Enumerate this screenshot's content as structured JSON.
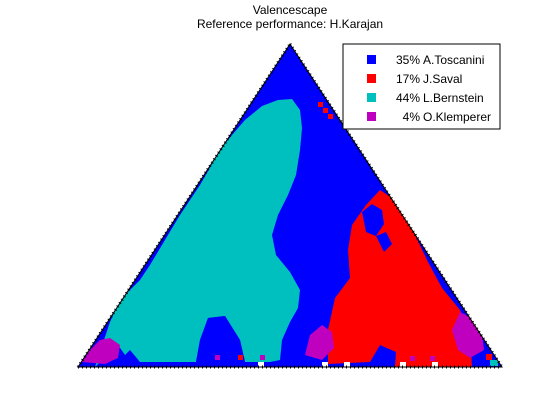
{
  "chart_data": {
    "type": "heatmap",
    "title": "Valencescape",
    "subtitle": "Reference performance: H.Karajan",
    "legend_position": "top-right",
    "legend": [
      {
        "percent": "35%",
        "name": "A.Toscanini",
        "label": "35% A.Toscanini",
        "color": "#0000ff"
      },
      {
        "percent": "17%",
        "name": "J.Saval",
        "label": "17% J.Saval",
        "color": "#ff0000"
      },
      {
        "percent": "44%",
        "name": "L.Bernstein",
        "label": "44% L.Bernstein",
        "color": "#00bfbf"
      },
      {
        "percent": "4%",
        "name": "O.Klemperer",
        "label": "4% O.Klemperer",
        "color": "#bf00bf"
      }
    ],
    "grid": false
  }
}
